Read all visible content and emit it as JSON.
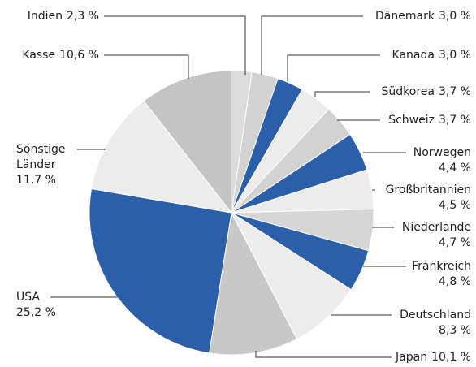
{
  "chart_data": {
    "type": "pie",
    "categories": [
      "Indien",
      "Dänemark",
      "Kanada",
      "Südkorea",
      "Schweiz",
      "Norwegen",
      "Großbritannien",
      "Niederlande",
      "Frankreich",
      "Deutschland",
      "Japan",
      "USA",
      "Sonstige Länder",
      "Kasse"
    ],
    "values": [
      2.3,
      3.0,
      3.0,
      3.7,
      3.7,
      4.4,
      4.5,
      4.7,
      4.8,
      8.3,
      10.1,
      25.2,
      11.7,
      10.6
    ],
    "value_labels": [
      "2,3 %",
      "3,0 %",
      "3,0 %",
      "3,7 %",
      "3,7 %",
      "4,4 %",
      "4,5 %",
      "4,7 %",
      "4,8 %",
      "8,3 %",
      "10,1 %",
      "25,2 %",
      "11,7 %",
      "10,6 %"
    ],
    "colors": [
      "#dcdcdc",
      "#d2d2d2",
      "#2b5fa9",
      "#ececec",
      "#d2d2d2",
      "#2b5fa9",
      "#ececec",
      "#d6d6d6",
      "#2b5fa9",
      "#ececec",
      "#c8c8c8",
      "#2b5fa9",
      "#ececec",
      "#c4c4c4"
    ]
  }
}
